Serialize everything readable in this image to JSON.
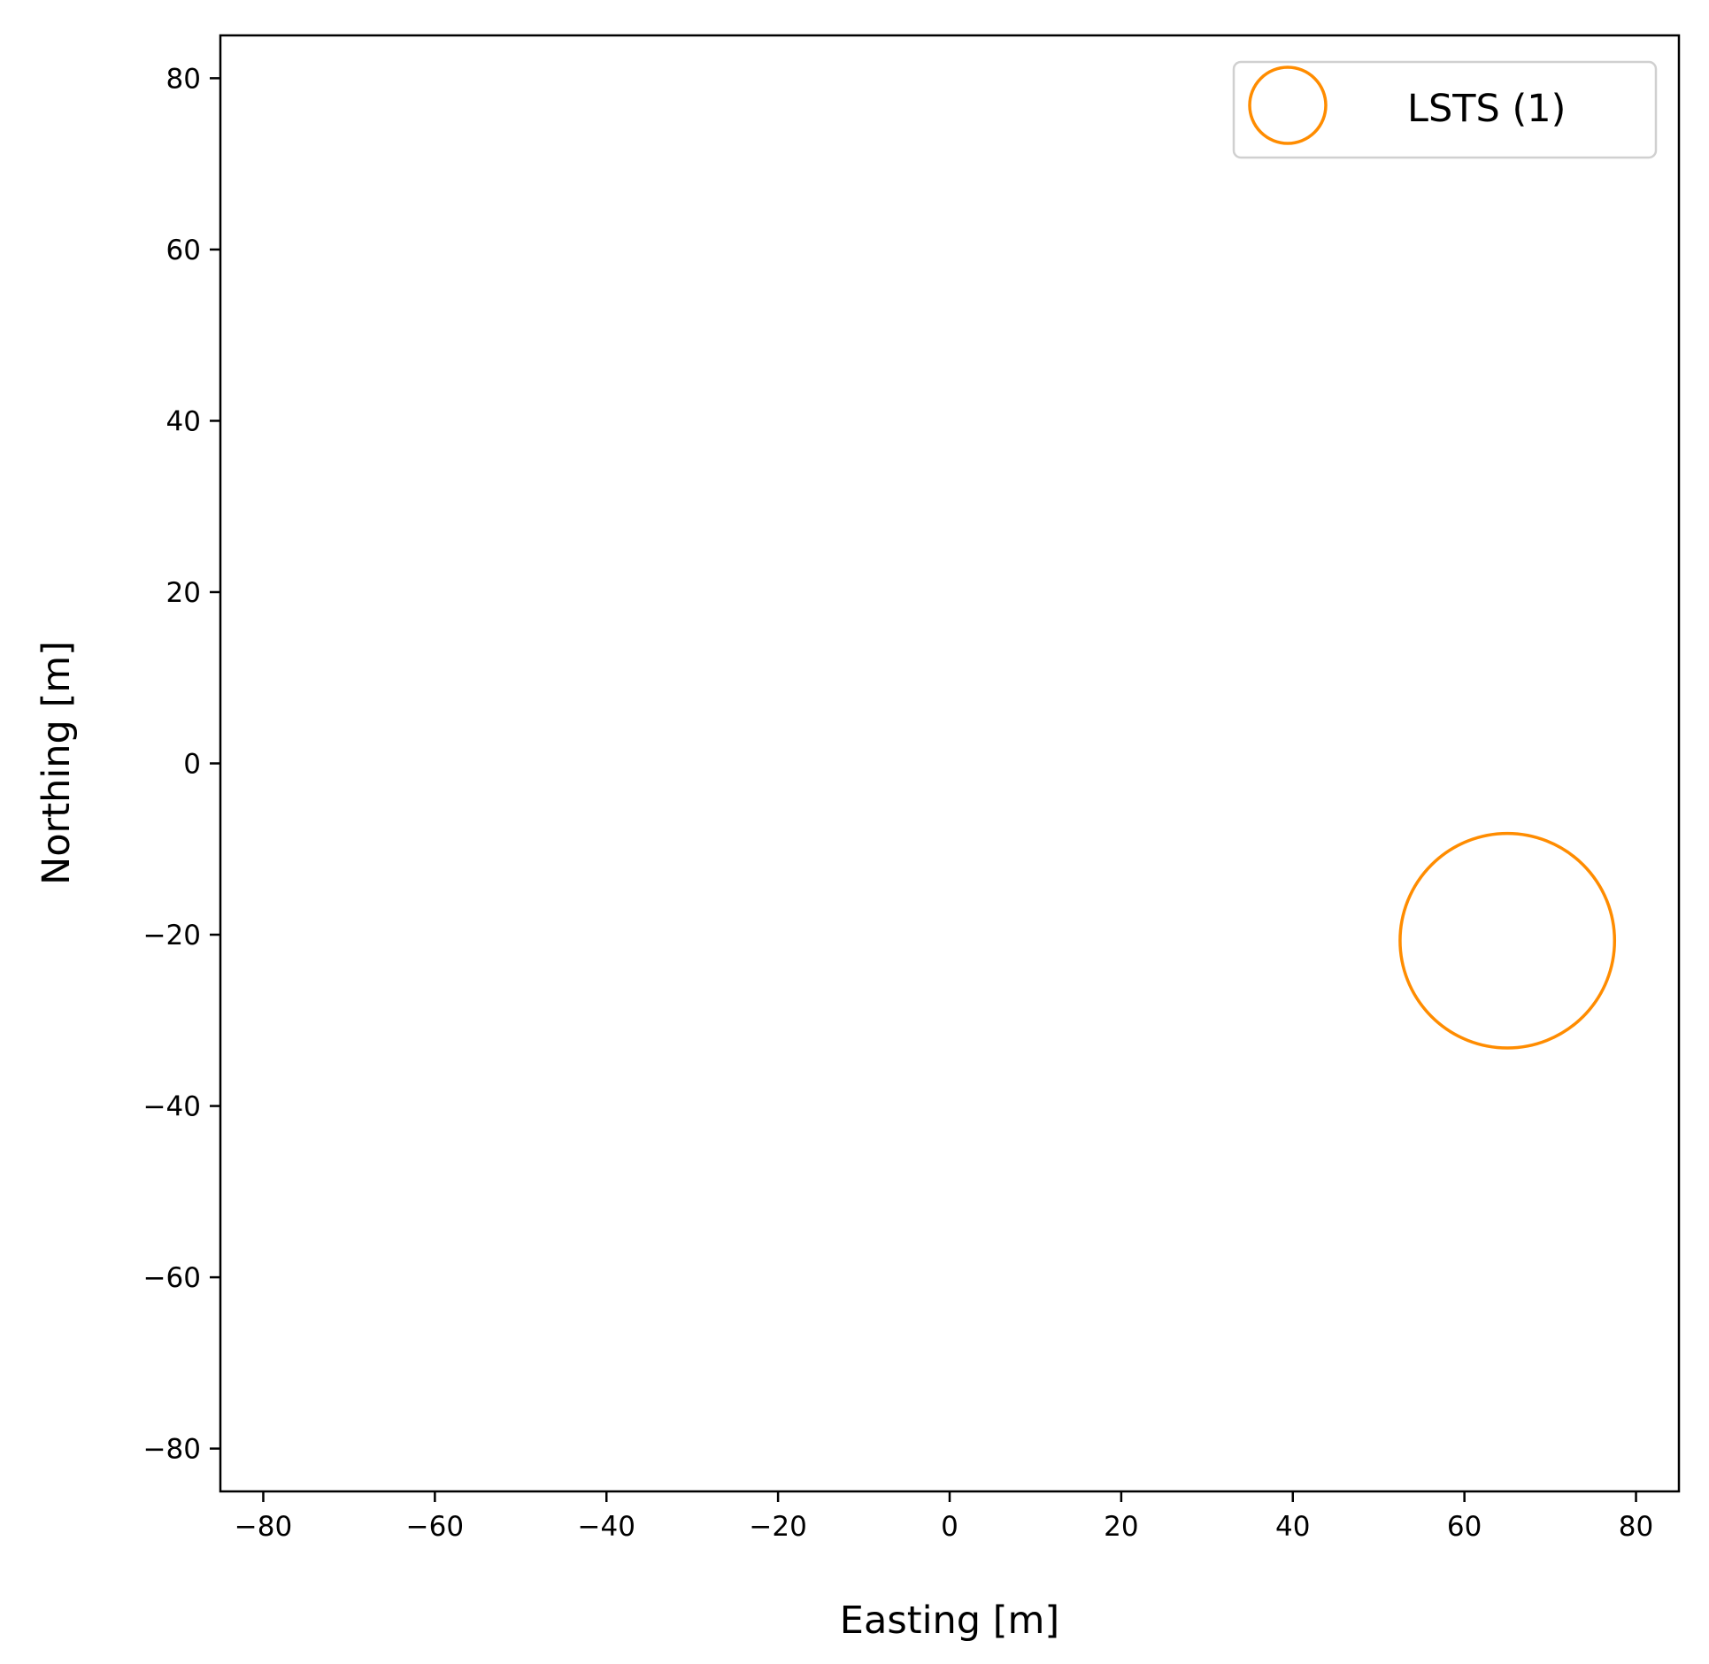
{
  "chart_data": {
    "type": "scatter",
    "title": "",
    "xlabel": "Easting [m]",
    "ylabel": "Northing [m]",
    "xlim": [
      -85,
      85
    ],
    "ylim": [
      -85,
      85
    ],
    "xticks": [
      -80,
      -60,
      -40,
      -20,
      0,
      20,
      40,
      60,
      80
    ],
    "yticks": [
      -80,
      -60,
      -40,
      -20,
      0,
      20,
      40,
      60,
      80
    ],
    "xtick_labels": [
      "−80",
      "−60",
      "−40",
      "−20",
      "0",
      "20",
      "40",
      "60",
      "80"
    ],
    "ytick_labels": [
      "−80",
      "−60",
      "−40",
      "−20",
      "0",
      "20",
      "40",
      "60",
      "80"
    ],
    "grid": false,
    "legend_position": "top-right",
    "series": [
      {
        "name": "LSTS (1)",
        "color": "#ff8c00",
        "marker": "hollow-circle",
        "points": [
          {
            "x": 65,
            "y": -20.7,
            "radius": 12.5
          }
        ]
      }
    ]
  }
}
